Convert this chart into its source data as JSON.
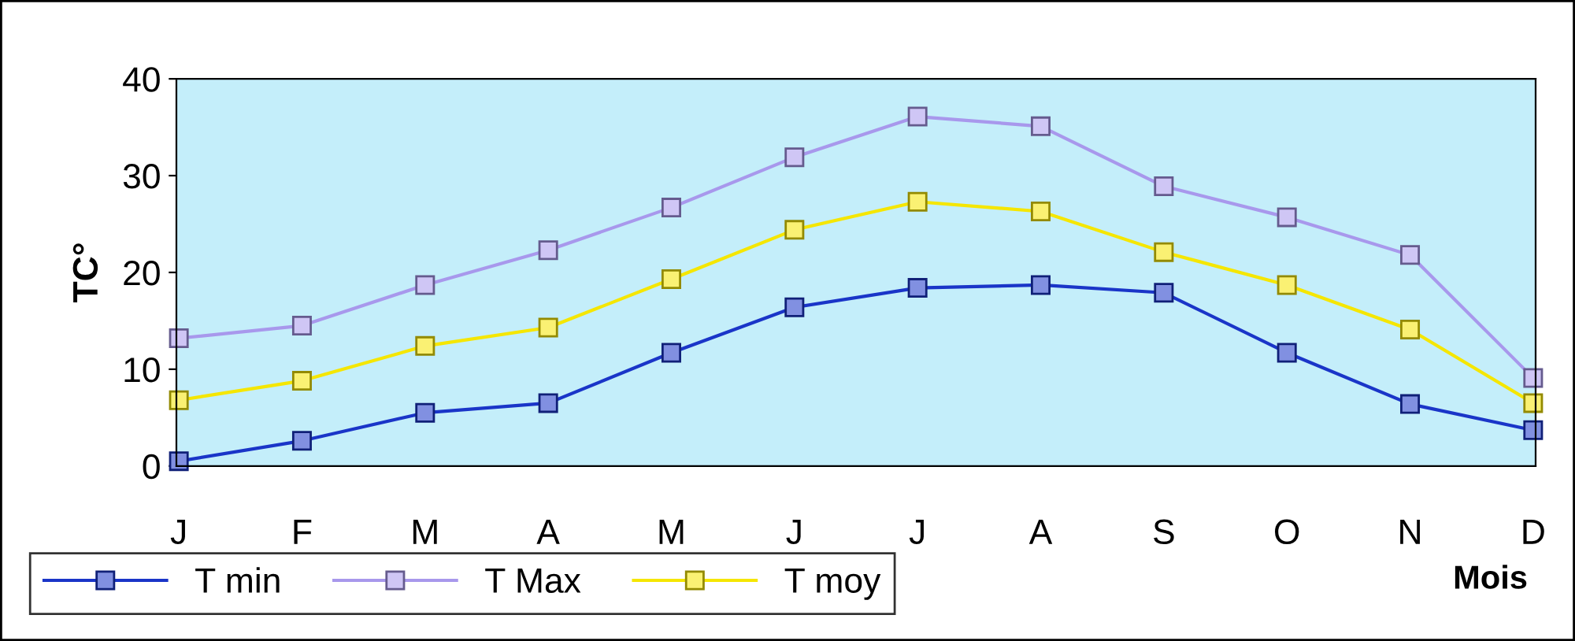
{
  "chart_data": {
    "type": "line",
    "xlabel": "Mois",
    "ylabel": "TC°",
    "categories": [
      "J",
      "F",
      "M",
      "A",
      "M",
      "J",
      "J",
      "A",
      "S",
      "O",
      "N",
      "D"
    ],
    "series": [
      {
        "name": "T min",
        "color": "#1a35c8",
        "values": [
          0.5,
          2.6,
          5.5,
          6.5,
          11.7,
          16.4,
          18.4,
          18.7,
          17.9,
          11.7,
          6.4,
          3.7
        ]
      },
      {
        "name": "T Max",
        "color": "#a898ec",
        "values": [
          13.2,
          14.5,
          18.7,
          22.3,
          26.7,
          31.9,
          36.1,
          35.1,
          28.9,
          25.7,
          21.8,
          9.1
        ]
      },
      {
        "name": "T moy",
        "color": "#f5e600",
        "values": [
          6.8,
          8.8,
          12.4,
          14.3,
          19.3,
          24.4,
          27.3,
          26.3,
          22.1,
          18.7,
          14.1,
          6.5
        ]
      }
    ],
    "ylim": [
      0,
      40
    ],
    "yticks": [
      0,
      10,
      20,
      30,
      40
    ],
    "marker": "square",
    "line_style": "solid",
    "legend": "bottom left",
    "grid": false
  }
}
